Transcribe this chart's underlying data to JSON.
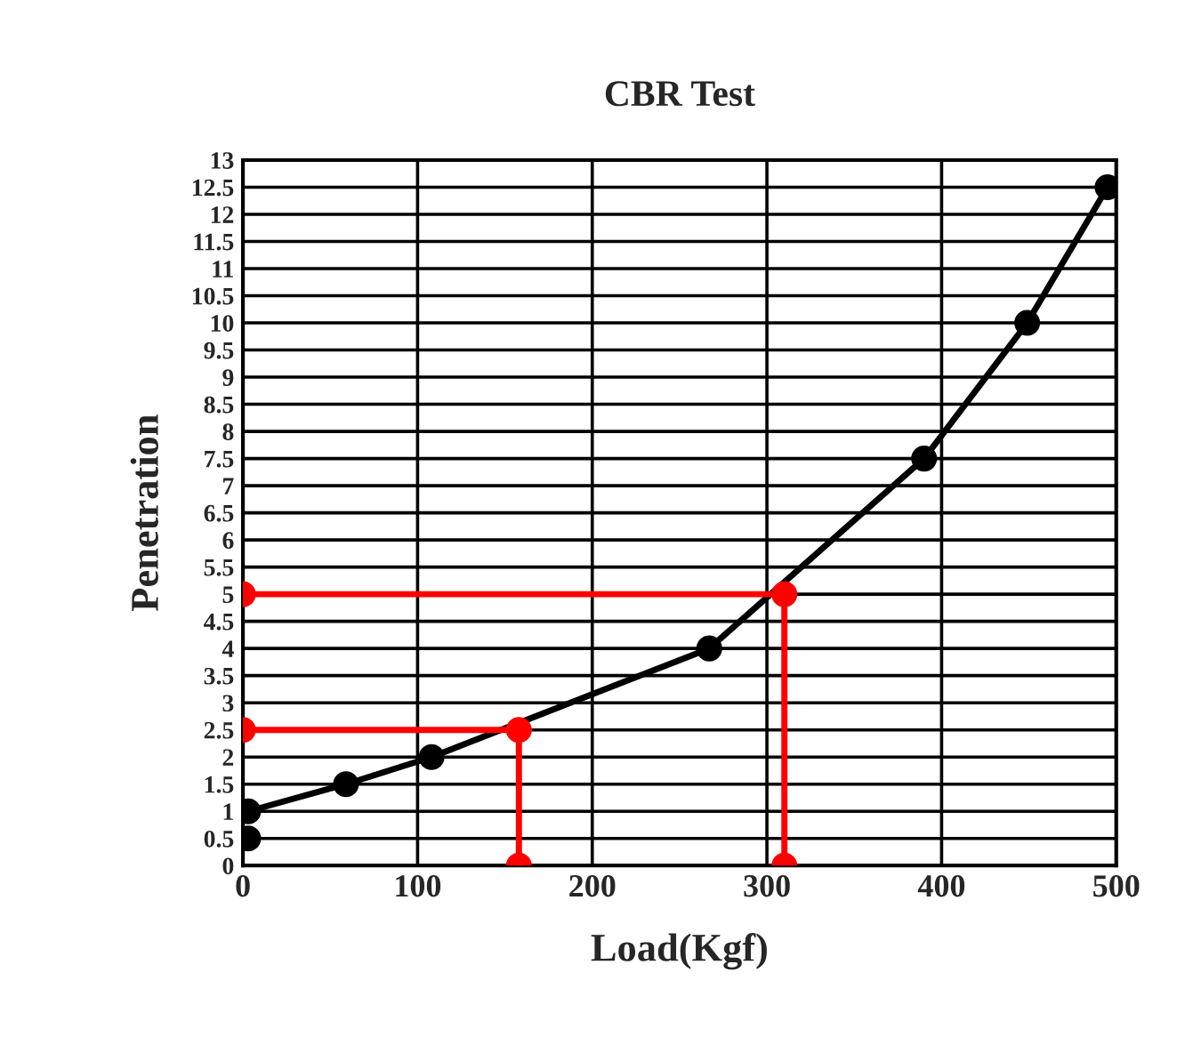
{
  "chart_data": {
    "type": "line",
    "title": "CBR Test",
    "xlabel": "Load(Kgf)",
    "ylabel": "Penetration",
    "xlim": [
      0,
      500
    ],
    "xticks": [
      0,
      100,
      200,
      300,
      400,
      500
    ],
    "ylim": [
      0,
      13
    ],
    "yticks": [
      0,
      0.5,
      1,
      1.5,
      2,
      2.5,
      3,
      3.5,
      4,
      4.5,
      5,
      5.5,
      6,
      6.5,
      7,
      7.5,
      8,
      8.5,
      9,
      9.5,
      10,
      10.5,
      11,
      11.5,
      12,
      12.5,
      13
    ],
    "grid": true,
    "legend": false,
    "marker": "circle",
    "line_style": "solid",
    "series": [
      {
        "type": "scatter",
        "color": "#000000",
        "x": [
          3
        ],
        "values": [
          0.5
        ]
      },
      {
        "color": "#000000",
        "x": [
          3,
          59,
          108,
          267,
          390,
          449,
          495
        ],
        "values": [
          1,
          1.5,
          2,
          4,
          7.5,
          10,
          12.5
        ]
      },
      {
        "color": "#ff0000",
        "x": [
          0,
          158,
          158
        ],
        "values": [
          2.5,
          2.5,
          0
        ]
      },
      {
        "color": "#ff0000",
        "x": [
          0,
          310,
          310
        ],
        "values": [
          5,
          5,
          0
        ]
      }
    ]
  }
}
